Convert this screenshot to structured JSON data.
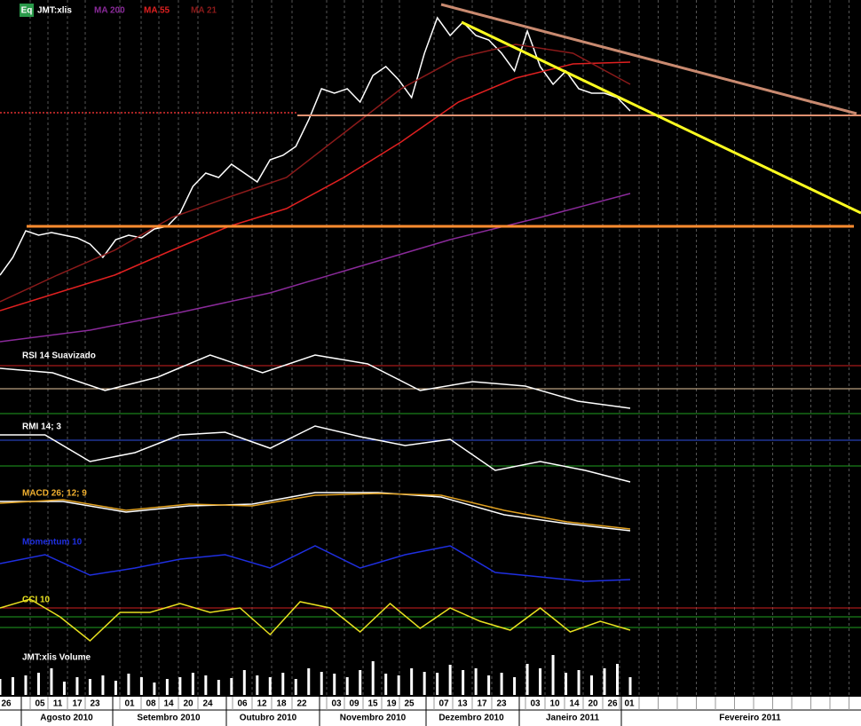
{
  "chart_data": [
    {
      "type": "line",
      "badge": "Eq",
      "ylim": [
        0,
        385
      ],
      "series": [
        {
          "name": "JMT:xlis",
          "color": "#ffffff",
          "values": [
            75,
            95,
            125,
            120,
            123,
            120,
            117,
            110,
            95,
            115,
            120,
            117,
            127,
            130,
            145,
            175,
            190,
            185,
            200,
            190,
            180,
            205,
            210,
            220,
            250,
            285,
            280,
            285,
            270,
            300,
            310,
            295,
            275,
            325,
            365,
            345,
            360,
            345,
            340,
            325,
            305,
            350,
            310,
            290,
            305,
            285,
            280,
            280,
            275,
            260
          ]
        },
        {
          "name": "MA 200",
          "color": "#8a2a9a",
          "values": [
            0,
            13,
            33,
            55,
            85,
            115,
            140,
            167
          ]
        },
        {
          "name": "MA 55",
          "color": "#e02020",
          "values": [
            35,
            55,
            75,
            103,
            130,
            150,
            185,
            225,
            270,
            297,
            313,
            315
          ]
        },
        {
          "name": "MA 21",
          "color": "#8b1a1a",
          "values": [
            45,
            75,
            103,
            140,
            163,
            185,
            235,
            285,
            320,
            335,
            325,
            290
          ]
        }
      ]
    },
    {
      "type": "line",
      "title": "RSI 14 Suavizado",
      "color": "#ffffff",
      "ylim": [
        0,
        75
      ],
      "levels": [
        {
          "value": 58,
          "color": "#d02020"
        },
        {
          "value": 32,
          "color": "#e8c8a0"
        },
        {
          "value": 4,
          "color": "#20a020"
        }
      ],
      "values": [
        55,
        50,
        30,
        45,
        70,
        50,
        70,
        60,
        30,
        40,
        35,
        18,
        10
      ]
    },
    {
      "type": "line",
      "title": "RMI 14; 3",
      "color": "#ffffff",
      "ylim": [
        0,
        73
      ],
      "levels": [
        {
          "value": 52,
          "color": "#3050e0"
        },
        {
          "value": 23,
          "color": "#20a020"
        }
      ],
      "values": [
        58,
        58,
        28,
        38,
        58,
        61,
        43,
        68,
        56,
        46,
        53,
        18,
        28,
        18,
        5
      ]
    },
    {
      "type": "line",
      "title": "MACD 26; 12; 9",
      "title_color": "#f0b030",
      "ylim": [
        0,
        55
      ],
      "series": [
        {
          "color": "#ffffff",
          "values": [
            40,
            40,
            28,
            35,
            37,
            50,
            50,
            45,
            25,
            15,
            7
          ]
        },
        {
          "color": "#e0a020",
          "values": [
            38,
            42,
            30,
            37,
            35,
            47,
            49,
            47,
            30,
            17,
            9
          ]
        }
      ]
    },
    {
      "type": "line",
      "title": "Momentum 10",
      "color": "#1f2fe0",
      "ylim": [
        0,
        65
      ],
      "values": [
        35,
        45,
        22,
        30,
        40,
        45,
        30,
        55,
        30,
        45,
        55,
        25,
        20,
        15,
        17
      ]
    },
    {
      "type": "line",
      "title": "CCI 10",
      "color": "#e8e020",
      "ylim": [
        0,
        60
      ],
      "levels": [
        {
          "value": 45,
          "color": "#d02020"
        },
        {
          "value": 35,
          "color": "#20a020"
        },
        {
          "value": 23,
          "color": "#20a020"
        }
      ],
      "values": [
        45,
        55,
        35,
        8,
        40,
        40,
        50,
        40,
        45,
        15,
        52,
        45,
        18,
        50,
        22,
        45,
        30,
        20,
        45,
        18,
        30,
        20
      ]
    },
    {
      "type": "bar",
      "title": "JMT:xlis Volume",
      "color": "#ffffff",
      "ylim": [
        0,
        48
      ],
      "values": [
        18,
        20,
        22,
        25,
        30,
        15,
        20,
        18,
        22,
        16,
        24,
        20,
        14,
        18,
        20,
        25,
        22,
        17,
        19,
        28,
        22,
        20,
        25,
        18,
        30,
        26,
        24,
        20,
        28,
        38,
        24,
        22,
        30,
        26,
        25,
        34,
        28,
        30,
        22,
        25,
        20,
        35,
        30,
        45,
        25,
        28,
        22,
        30,
        35,
        20
      ]
    }
  ],
  "time_axis": {
    "days": [
      "26",
      "05",
      "11",
      "17",
      "23",
      "01",
      "08",
      "14",
      "20",
      "24",
      "06",
      "12",
      "18",
      "22",
      "03",
      "09",
      "15",
      "19",
      "25",
      "07",
      "13",
      "17",
      "23",
      "03",
      "10",
      "14",
      "20",
      "26",
      "01"
    ],
    "months": [
      "Agosto 2010",
      "Setembro 2010",
      "Outubro 2010",
      "Novembro 2010",
      "Dezembro 2010",
      "Janeiro 2011",
      "Fevereiro 2011"
    ]
  }
}
